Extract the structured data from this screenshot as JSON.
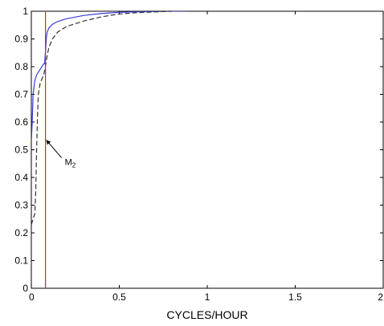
{
  "chart_data": {
    "type": "line",
    "title": "",
    "xlabel": "CYCLES/HOUR",
    "ylabel": "",
    "xlim": [
      0,
      2
    ],
    "ylim": [
      0,
      1
    ],
    "xticks": [
      0,
      0.5,
      1,
      1.5,
      2
    ],
    "xtick_labels": [
      "0",
      "0.5",
      "1",
      "1.5",
      "2"
    ],
    "yticks": [
      0,
      0.1,
      0.2,
      0.3,
      0.4,
      0.5,
      0.6,
      0.7,
      0.8,
      0.9,
      1
    ],
    "ytick_labels": [
      "0",
      "0.1",
      "0.2",
      "0.3",
      "0.4",
      "0.5",
      "0.6",
      "0.7",
      "0.8",
      "0.9",
      "1"
    ],
    "grid": false,
    "series": [
      {
        "style": "solid",
        "color": "#3b3bd8",
        "x": [
          0.0,
          0.005,
          0.01,
          0.02,
          0.03,
          0.04,
          0.05,
          0.06,
          0.07,
          0.075,
          0.08,
          0.085,
          0.09,
          0.1,
          0.12,
          0.15,
          0.2,
          0.3,
          0.4,
          0.5,
          0.6,
          0.7,
          0.8,
          0.88
        ],
        "y": [
          0.53,
          0.6,
          0.7,
          0.75,
          0.77,
          0.78,
          0.79,
          0.8,
          0.81,
          0.81,
          0.85,
          0.9,
          0.925,
          0.94,
          0.953,
          0.963,
          0.973,
          0.985,
          0.992,
          0.996,
          0.998,
          0.999,
          1.0,
          1.0
        ]
      },
      {
        "style": "dashed",
        "color": "#333333",
        "x": [
          0.0,
          0.01,
          0.02,
          0.025,
          0.03,
          0.035,
          0.04,
          0.05,
          0.06,
          0.07,
          0.08,
          0.09,
          0.1,
          0.12,
          0.15,
          0.2,
          0.3,
          0.4,
          0.5,
          0.6,
          0.8
        ],
        "y": [
          0.23,
          0.25,
          0.27,
          0.35,
          0.5,
          0.62,
          0.7,
          0.74,
          0.755,
          0.77,
          0.8,
          0.84,
          0.87,
          0.9,
          0.925,
          0.945,
          0.965,
          0.98,
          0.99,
          0.995,
          1.0
        ]
      }
    ],
    "reference_lines": [
      {
        "orientation": "vertical",
        "x": 0.0805,
        "color": "#e02020"
      }
    ],
    "annotations": [
      {
        "text": "M",
        "subscript": "2",
        "arrow_to": {
          "x": 0.085,
          "y": 0.535
        },
        "label_at": {
          "x": 0.19,
          "y": 0.445
        }
      }
    ]
  }
}
